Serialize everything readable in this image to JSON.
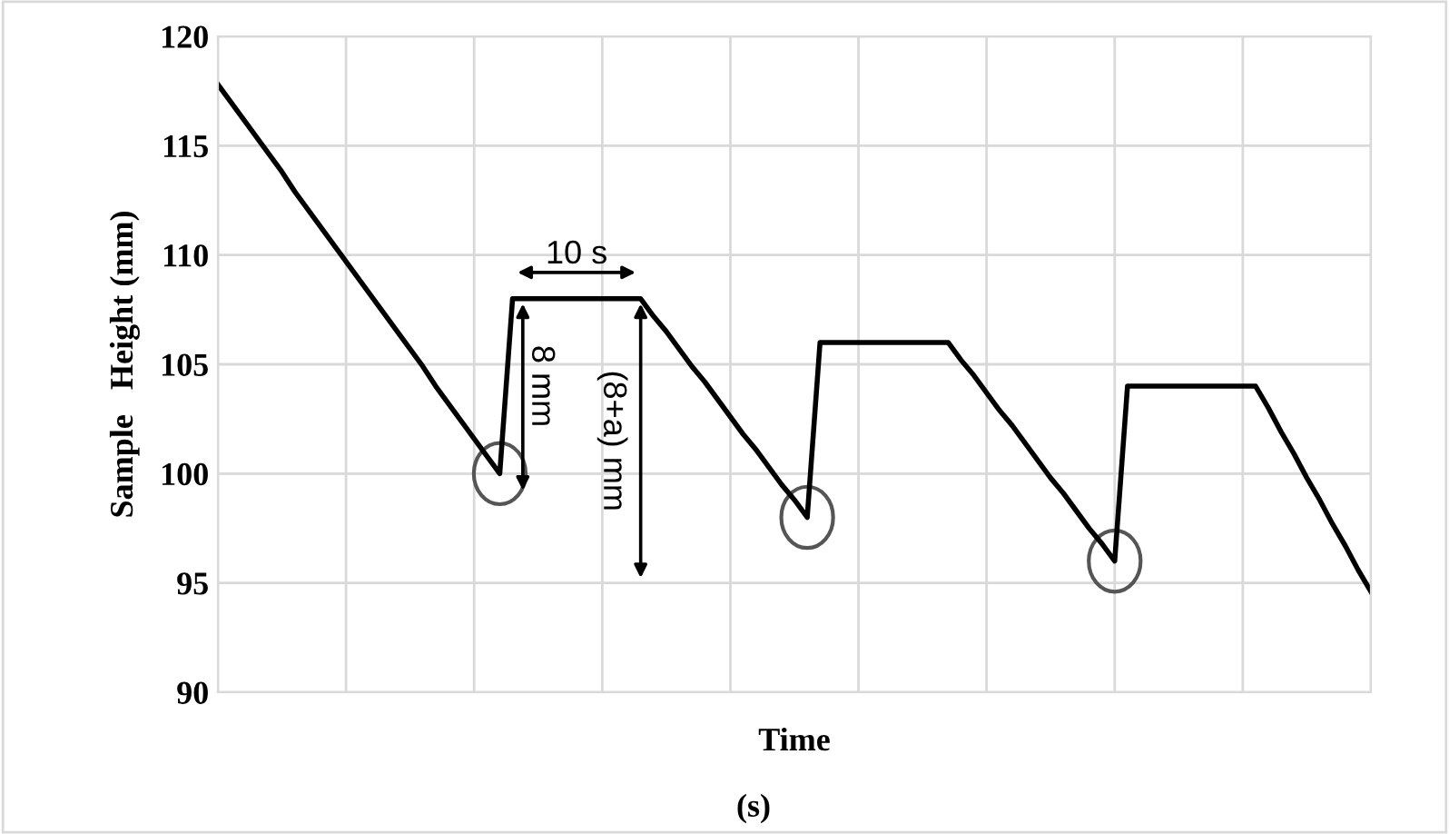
{
  "chart_data": {
    "type": "line",
    "ylabel": "Sample   Height (mm)",
    "xlabel": "Time",
    "categories": [
      null,
      null,
      null,
      null,
      null,
      null,
      null,
      null,
      null,
      null,
      null,
      null,
      null,
      null,
      null,
      null,
      null,
      null,
      null,
      null,
      null,
      null,
      null,
      null,
      null,
      null,
      null,
      null,
      null,
      null,
      null,
      null,
      null,
      null,
      null,
      null,
      null,
      null,
      null,
      null,
      null,
      null,
      null,
      null,
      null,
      null,
      null,
      null,
      null,
      null,
      null,
      null,
      null,
      null,
      null,
      null,
      null,
      null,
      null,
      null,
      null,
      null,
      null,
      null,
      null,
      null,
      null,
      null,
      null,
      null,
      null,
      null,
      null,
      null,
      null,
      null,
      null,
      null,
      null,
      null,
      null,
      null,
      null,
      null,
      null,
      null,
      null,
      null,
      null,
      null,
      null
    ],
    "values": [
      117.8,
      117.0,
      116.2,
      115.4,
      114.6,
      113.8,
      112.9,
      112.1,
      111.3,
      110.5,
      109.7,
      108.9,
      108.1,
      107.3,
      106.5,
      105.7,
      104.9,
      104.0,
      103.2,
      102.4,
      101.6,
      100.8,
      100,
      108,
      108,
      108,
      108,
      108,
      108,
      108,
      108,
      108,
      108,
      108,
      107.2,
      106.5,
      105.7,
      104.9,
      104.2,
      103.4,
      102.6,
      101.8,
      101.1,
      100.3,
      99.5,
      98.8,
      98,
      106,
      106,
      106,
      106,
      106,
      106,
      106,
      106,
      106,
      106,
      106,
      105.2,
      104.5,
      103.7,
      102.9,
      102.2,
      101.4,
      100.6,
      99.8,
      99.1,
      98.3,
      97.5,
      96.8,
      96,
      104,
      104,
      104,
      104,
      104,
      104,
      104,
      104,
      104,
      104,
      104,
      103.0,
      101.9,
      100.9,
      99.8,
      98.8,
      97.7,
      96.7,
      95.6,
      94.6
    ],
    "color": "#000000",
    "ylim": [
      90,
      120
    ],
    "yticks": [
      90,
      95,
      100,
      105,
      110,
      115,
      120
    ],
    "tick_labels": "y",
    "grid": true,
    "annotations": [
      "10 s",
      "8 mm",
      "(8+a) mm",
      "(s)"
    ]
  }
}
